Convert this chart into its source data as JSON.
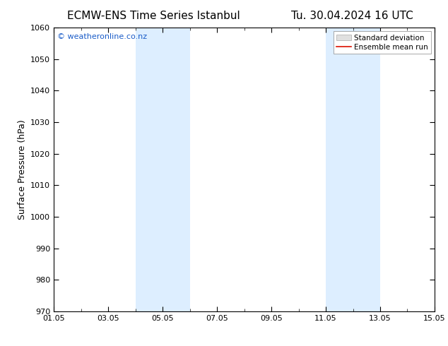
{
  "title_left": "ECMW-ENS Time Series Istanbul",
  "title_right": "Tu. 30.04.2024 16 UTC",
  "ylabel": "Surface Pressure (hPa)",
  "ylim": [
    970,
    1060
  ],
  "yticks": [
    970,
    980,
    990,
    1000,
    1010,
    1020,
    1030,
    1040,
    1050,
    1060
  ],
  "xlim_start": 0,
  "xlim_end": 14,
  "xtick_labels": [
    "01.05",
    "03.05",
    "05.05",
    "07.05",
    "09.05",
    "11.05",
    "13.05",
    "15.05"
  ],
  "xtick_positions": [
    0,
    2,
    4,
    6,
    8,
    10,
    12,
    14
  ],
  "shaded_regions": [
    {
      "xmin": 3.0,
      "xmax": 5.0
    },
    {
      "xmin": 10.0,
      "xmax": 12.0
    }
  ],
  "shaded_color": "#ddeeff",
  "watermark_text": "© weatheronline.co.nz",
  "watermark_color": "#1a5cc8",
  "bg_color": "#ffffff",
  "legend_std_label": "Standard deviation",
  "legend_mean_label": "Ensemble mean run",
  "legend_std_facecolor": "#e0e0e0",
  "legend_std_edgecolor": "#aaaaaa",
  "legend_mean_color": "#dd1100",
  "title_fontsize": 11,
  "axis_label_fontsize": 9,
  "tick_fontsize": 8,
  "watermark_fontsize": 8,
  "legend_fontsize": 7.5
}
